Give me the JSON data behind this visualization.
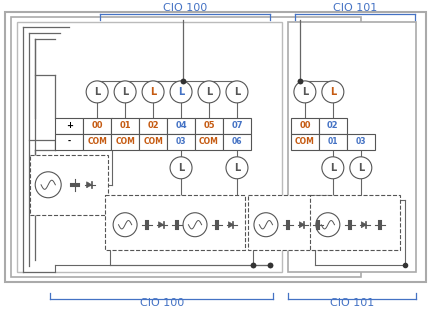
{
  "fig_width": 4.31,
  "fig_height": 3.09,
  "dpi": 100,
  "bg_color": "#ffffff",
  "label_color": "#4472c4",
  "wire_color": "#666666",
  "cio100_top": "CIO 100",
  "cio101_top": "CIO 101",
  "cio100_bot": "CIO 100",
  "cio101_bot": "CIO 101",
  "terminal_row1": [
    "+",
    "00",
    "01",
    "02",
    "04",
    "05",
    "07",
    "00",
    "02"
  ],
  "terminal_row2": [
    "-",
    "COM",
    "COM",
    "COM",
    "03",
    "COM",
    "06",
    "COM",
    "01",
    "03"
  ],
  "row1_colors": [
    "#000000",
    "#c55a11",
    "#c55a11",
    "#c55a11",
    "#4472c4",
    "#c55a11",
    "#4472c4",
    "#c55a11",
    "#4472c4"
  ],
  "row2_colors": [
    "#000000",
    "#c55a11",
    "#c55a11",
    "#c55a11",
    "#4472c4",
    "#c55a11",
    "#4472c4",
    "#c55a11",
    "#4472c4",
    "#4472c4"
  ],
  "top_lamp_fill": [
    "white",
    "white",
    "white",
    "white",
    "white",
    "white",
    "white",
    "white"
  ],
  "top_lamp_L_color": [
    "#555555",
    "#555555",
    "#c55a11",
    "#4472c4",
    "#555555",
    "#555555",
    "#555555",
    "#c55a11"
  ]
}
